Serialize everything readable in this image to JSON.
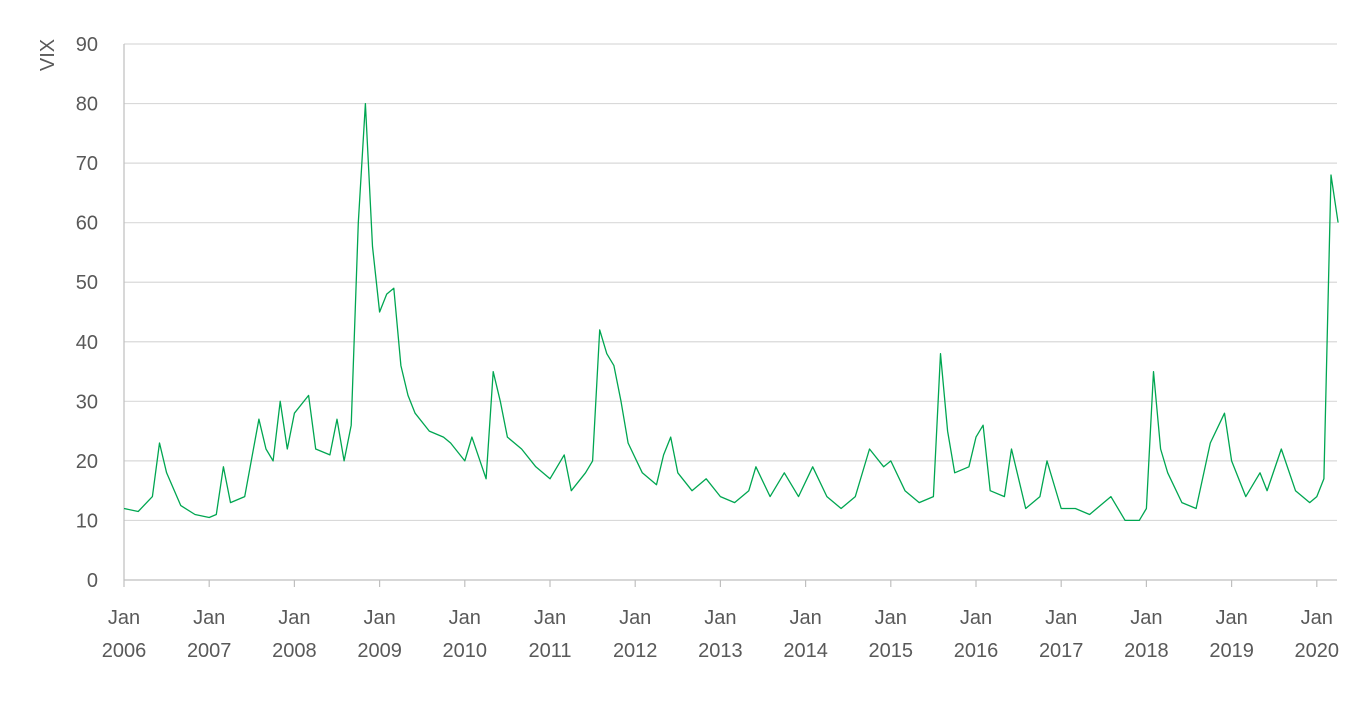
{
  "chart_data": {
    "type": "line",
    "title": "",
    "xlabel": "",
    "ylabel": "VIX",
    "ylim": [
      0,
      90
    ],
    "xlim": [
      "2006-01",
      "2020-04"
    ],
    "grid": "horizontal",
    "legend": "none",
    "y_ticks": [
      "0",
      "10",
      "20",
      "30",
      "40",
      "50",
      "60",
      "70",
      "80",
      "90"
    ],
    "x_ticks": [
      {
        "line1": "Jan",
        "line2": "2006"
      },
      {
        "line1": "Jan",
        "line2": "2007"
      },
      {
        "line1": "Jan",
        "line2": "2008"
      },
      {
        "line1": "Jan",
        "line2": "2009"
      },
      {
        "line1": "Jan",
        "line2": "2010"
      },
      {
        "line1": "Jan",
        "line2": "2011"
      },
      {
        "line1": "Jan",
        "line2": "2012"
      },
      {
        "line1": "Jan",
        "line2": "2013"
      },
      {
        "line1": "Jan",
        "line2": "2014"
      },
      {
        "line1": "Jan",
        "line2": "2015"
      },
      {
        "line1": "Jan",
        "line2": "2016"
      },
      {
        "line1": "Jan",
        "line2": "2017"
      },
      {
        "line1": "Jan",
        "line2": "2018"
      },
      {
        "line1": "Jan",
        "line2": "2019"
      },
      {
        "line1": "Jan",
        "line2": "2020"
      }
    ],
    "series": [
      {
        "color": "#00a651",
        "points": [
          [
            "2006-01",
            12
          ],
          [
            "2006-03",
            11.5
          ],
          [
            "2006-05",
            14
          ],
          [
            "2006-06",
            23
          ],
          [
            "2006-07",
            18
          ],
          [
            "2006-09",
            12.5
          ],
          [
            "2006-11",
            11
          ],
          [
            "2007-01",
            10.5
          ],
          [
            "2007-02",
            11
          ],
          [
            "2007-03",
            19
          ],
          [
            "2007-04",
            13
          ],
          [
            "2007-06",
            14
          ],
          [
            "2007-08",
            27
          ],
          [
            "2007-09",
            22
          ],
          [
            "2007-10",
            20
          ],
          [
            "2007-11",
            30
          ],
          [
            "2007-12",
            22
          ],
          [
            "2008-01",
            28
          ],
          [
            "2008-03",
            31
          ],
          [
            "2008-04",
            22
          ],
          [
            "2008-06",
            21
          ],
          [
            "2008-07",
            27
          ],
          [
            "2008-08",
            20
          ],
          [
            "2008-09",
            26
          ],
          [
            "2008-10",
            60
          ],
          [
            "2008-11",
            80
          ],
          [
            "2008-12",
            56
          ],
          [
            "2009-01",
            45
          ],
          [
            "2009-02",
            48
          ],
          [
            "2009-03",
            49
          ],
          [
            "2009-04",
            36
          ],
          [
            "2009-05",
            31
          ],
          [
            "2009-06",
            28
          ],
          [
            "2009-08",
            25
          ],
          [
            "2009-10",
            24
          ],
          [
            "2009-11",
            23
          ],
          [
            "2010-01",
            20
          ],
          [
            "2010-02",
            24
          ],
          [
            "2010-04",
            17
          ],
          [
            "2010-05",
            35
          ],
          [
            "2010-06",
            30
          ],
          [
            "2010-07",
            24
          ],
          [
            "2010-09",
            22
          ],
          [
            "2010-11",
            19
          ],
          [
            "2011-01",
            17
          ],
          [
            "2011-03",
            21
          ],
          [
            "2011-04",
            15
          ],
          [
            "2011-06",
            18
          ],
          [
            "2011-07",
            20
          ],
          [
            "2011-08",
            42
          ],
          [
            "2011-09",
            38
          ],
          [
            "2011-10",
            36
          ],
          [
            "2011-11",
            30
          ],
          [
            "2011-12",
            23
          ],
          [
            "2012-02",
            18
          ],
          [
            "2012-04",
            16
          ],
          [
            "2012-05",
            21
          ],
          [
            "2012-06",
            24
          ],
          [
            "2012-07",
            18
          ],
          [
            "2012-09",
            15
          ],
          [
            "2012-11",
            17
          ],
          [
            "2013-01",
            14
          ],
          [
            "2013-03",
            13
          ],
          [
            "2013-05",
            15
          ],
          [
            "2013-06",
            19
          ],
          [
            "2013-08",
            14
          ],
          [
            "2013-10",
            18
          ],
          [
            "2013-12",
            14
          ],
          [
            "2014-02",
            19
          ],
          [
            "2014-04",
            14
          ],
          [
            "2014-06",
            12
          ],
          [
            "2014-08",
            14
          ],
          [
            "2014-10",
            22
          ],
          [
            "2014-12",
            19
          ],
          [
            "2015-01",
            20
          ],
          [
            "2015-03",
            15
          ],
          [
            "2015-05",
            13
          ],
          [
            "2015-07",
            14
          ],
          [
            "2015-08",
            38
          ],
          [
            "2015-09",
            25
          ],
          [
            "2015-10",
            18
          ],
          [
            "2015-12",
            19
          ],
          [
            "2016-01",
            24
          ],
          [
            "2016-02",
            26
          ],
          [
            "2016-03",
            15
          ],
          [
            "2016-05",
            14
          ],
          [
            "2016-06",
            22
          ],
          [
            "2016-08",
            12
          ],
          [
            "2016-10",
            14
          ],
          [
            "2016-11",
            20
          ],
          [
            "2017-01",
            12
          ],
          [
            "2017-03",
            12
          ],
          [
            "2017-05",
            11
          ],
          [
            "2017-08",
            14
          ],
          [
            "2017-10",
            10
          ],
          [
            "2017-12",
            10
          ],
          [
            "2018-01",
            12
          ],
          [
            "2018-02",
            35
          ],
          [
            "2018-03",
            22
          ],
          [
            "2018-04",
            18
          ],
          [
            "2018-06",
            13
          ],
          [
            "2018-08",
            12
          ],
          [
            "2018-10",
            23
          ],
          [
            "2018-12",
            28
          ],
          [
            "2019-01",
            20
          ],
          [
            "2019-03",
            14
          ],
          [
            "2019-05",
            18
          ],
          [
            "2019-06",
            15
          ],
          [
            "2019-08",
            22
          ],
          [
            "2019-10",
            15
          ],
          [
            "2019-12",
            13
          ],
          [
            "2020-01",
            14
          ],
          [
            "2020-02",
            17
          ],
          [
            "2020-03",
            68
          ],
          [
            "2020-04",
            60
          ]
        ]
      }
    ]
  }
}
